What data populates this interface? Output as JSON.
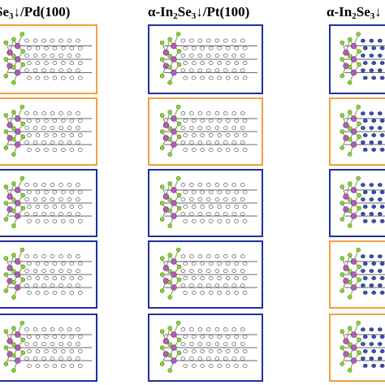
{
  "columns": [
    {
      "title_prefix": "Se",
      "title_sub": "3",
      "title_suffix": "↓/Pd(100)",
      "substrate_color": "#c8c8c8",
      "panels": [
        {
          "border": "orange"
        },
        {
          "border": "orange"
        },
        {
          "border": "blue"
        },
        {
          "border": "blue"
        },
        {
          "border": "blue"
        }
      ]
    },
    {
      "title_prefix": "α-In",
      "title_sub": "2",
      "title_mid": "Se",
      "title_sub2": "3",
      "title_suffix": "↓/Pt(100)",
      "substrate_color": "#c8c8c8",
      "panels": [
        {
          "border": "blue"
        },
        {
          "border": "orange"
        },
        {
          "border": "blue"
        },
        {
          "border": "blue"
        },
        {
          "border": "blue"
        }
      ]
    },
    {
      "title_prefix": "α-In",
      "title_sub": "2",
      "title_mid": "Se",
      "title_sub2": "3",
      "title_suffix": "↓",
      "substrate_color": "#3b4fb5",
      "panels": [
        {
          "border": "blue"
        },
        {
          "border": "orange"
        },
        {
          "border": "blue"
        },
        {
          "border": "orange"
        },
        {
          "border": "orange"
        }
      ]
    }
  ],
  "colors": {
    "blue_border": "#1f2fa3",
    "orange_border": "#f0a040",
    "in_atom": "#b05db5",
    "se_atom": "#8fd13a",
    "bond": "#7aa84a",
    "layer_line": "#333333"
  }
}
